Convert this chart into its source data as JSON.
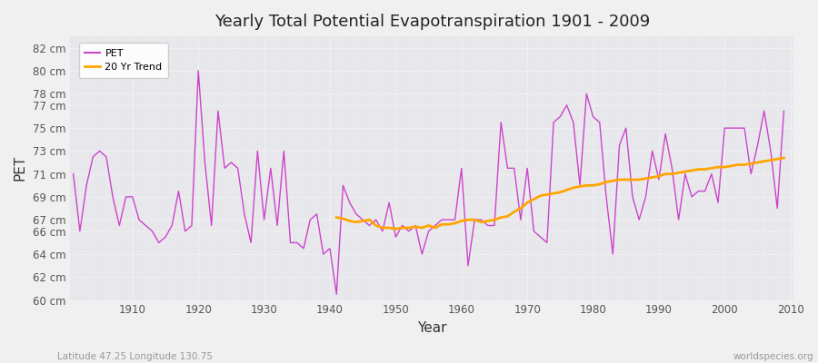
{
  "title": "Yearly Total Potential Evapotranspiration 1901 - 2009",
  "xlabel": "Year",
  "ylabel": "PET",
  "subtitle_left": "Latitude 47.25 Longitude 130.75",
  "subtitle_right": "worldspecies.org",
  "pet_color": "#cc44cc",
  "trend_color": "#ffa500",
  "fig_bg_color": "#f0f0f0",
  "plot_bg_color": "#e8e8ec",
  "ylim": [
    60,
    83
  ],
  "yticks": [
    60,
    62,
    64,
    66,
    67,
    69,
    71,
    73,
    75,
    77,
    78,
    80,
    82
  ],
  "xlim_left": 1900.5,
  "xlim_right": 2010.5,
  "years": [
    1901,
    1902,
    1903,
    1904,
    1905,
    1906,
    1907,
    1908,
    1909,
    1910,
    1911,
    1912,
    1913,
    1914,
    1915,
    1916,
    1917,
    1918,
    1919,
    1920,
    1921,
    1922,
    1923,
    1924,
    1925,
    1926,
    1927,
    1928,
    1929,
    1930,
    1931,
    1932,
    1933,
    1934,
    1935,
    1936,
    1937,
    1938,
    1939,
    1940,
    1941,
    1942,
    1943,
    1944,
    1945,
    1946,
    1947,
    1948,
    1949,
    1950,
    1951,
    1952,
    1953,
    1954,
    1955,
    1956,
    1957,
    1958,
    1959,
    1960,
    1961,
    1962,
    1963,
    1964,
    1965,
    1966,
    1967,
    1968,
    1969,
    1970,
    1971,
    1972,
    1973,
    1974,
    1975,
    1976,
    1977,
    1978,
    1979,
    1980,
    1981,
    1982,
    1983,
    1984,
    1985,
    1986,
    1987,
    1988,
    1989,
    1990,
    1991,
    1992,
    1993,
    1994,
    1995,
    1996,
    1997,
    1998,
    1999,
    2000,
    2001,
    2002,
    2003,
    2004,
    2005,
    2006,
    2007,
    2008,
    2009
  ],
  "pet": [
    71.0,
    66.0,
    70.0,
    72.5,
    73.0,
    72.5,
    69.0,
    66.5,
    69.0,
    69.0,
    67.0,
    66.5,
    66.0,
    65.0,
    65.5,
    66.5,
    69.5,
    66.0,
    66.5,
    80.0,
    72.0,
    66.5,
    76.5,
    71.5,
    72.0,
    71.5,
    67.5,
    65.0,
    73.0,
    67.0,
    71.5,
    66.5,
    73.0,
    65.0,
    65.0,
    64.5,
    67.0,
    67.5,
    64.0,
    64.5,
    60.5,
    70.0,
    68.5,
    67.5,
    67.0,
    66.5,
    67.0,
    66.0,
    68.5,
    65.5,
    66.5,
    66.0,
    66.5,
    64.0,
    66.0,
    66.5,
    67.0,
    67.0,
    67.0,
    71.5,
    63.0,
    67.0,
    67.0,
    66.5,
    66.5,
    75.5,
    71.5,
    71.5,
    67.0,
    71.5,
    66.0,
    65.5,
    65.0,
    75.5,
    76.0,
    77.0,
    75.5,
    70.0,
    78.0,
    76.0,
    75.5,
    69.0,
    64.0,
    73.5,
    75.0,
    69.0,
    67.0,
    69.0,
    73.0,
    70.5,
    74.5,
    71.5,
    67.0,
    71.0,
    69.0,
    69.5,
    69.5,
    71.0,
    68.5,
    75.0,
    75.0,
    75.0,
    75.0,
    71.0,
    73.5,
    76.5,
    73.0,
    68.0,
    76.5
  ],
  "trend": [
    null,
    null,
    null,
    null,
    null,
    null,
    null,
    null,
    null,
    null,
    null,
    null,
    null,
    null,
    null,
    null,
    null,
    null,
    null,
    null,
    null,
    null,
    null,
    null,
    null,
    null,
    null,
    null,
    null,
    null,
    null,
    null,
    null,
    null,
    null,
    null,
    null,
    null,
    null,
    null,
    67.2,
    67.1,
    66.9,
    66.8,
    66.9,
    67.0,
    66.5,
    66.3,
    66.3,
    66.2,
    66.3,
    66.3,
    66.4,
    66.3,
    66.5,
    66.3,
    66.6,
    66.6,
    66.7,
    66.9,
    67.0,
    67.0,
    66.8,
    66.9,
    67.0,
    67.2,
    67.3,
    67.7,
    68.0,
    68.5,
    68.8,
    69.1,
    69.2,
    69.3,
    69.4,
    69.6,
    69.8,
    69.9,
    70.0,
    70.0,
    70.1,
    70.3,
    70.4,
    70.5,
    70.5,
    70.5,
    70.5,
    70.6,
    70.7,
    70.8,
    71.0,
    71.0,
    71.1,
    71.2,
    71.3,
    71.4,
    71.4,
    71.5,
    71.6,
    71.6,
    71.7,
    71.8,
    71.8,
    71.9,
    72.0,
    72.1,
    72.2,
    72.3,
    72.4
  ]
}
